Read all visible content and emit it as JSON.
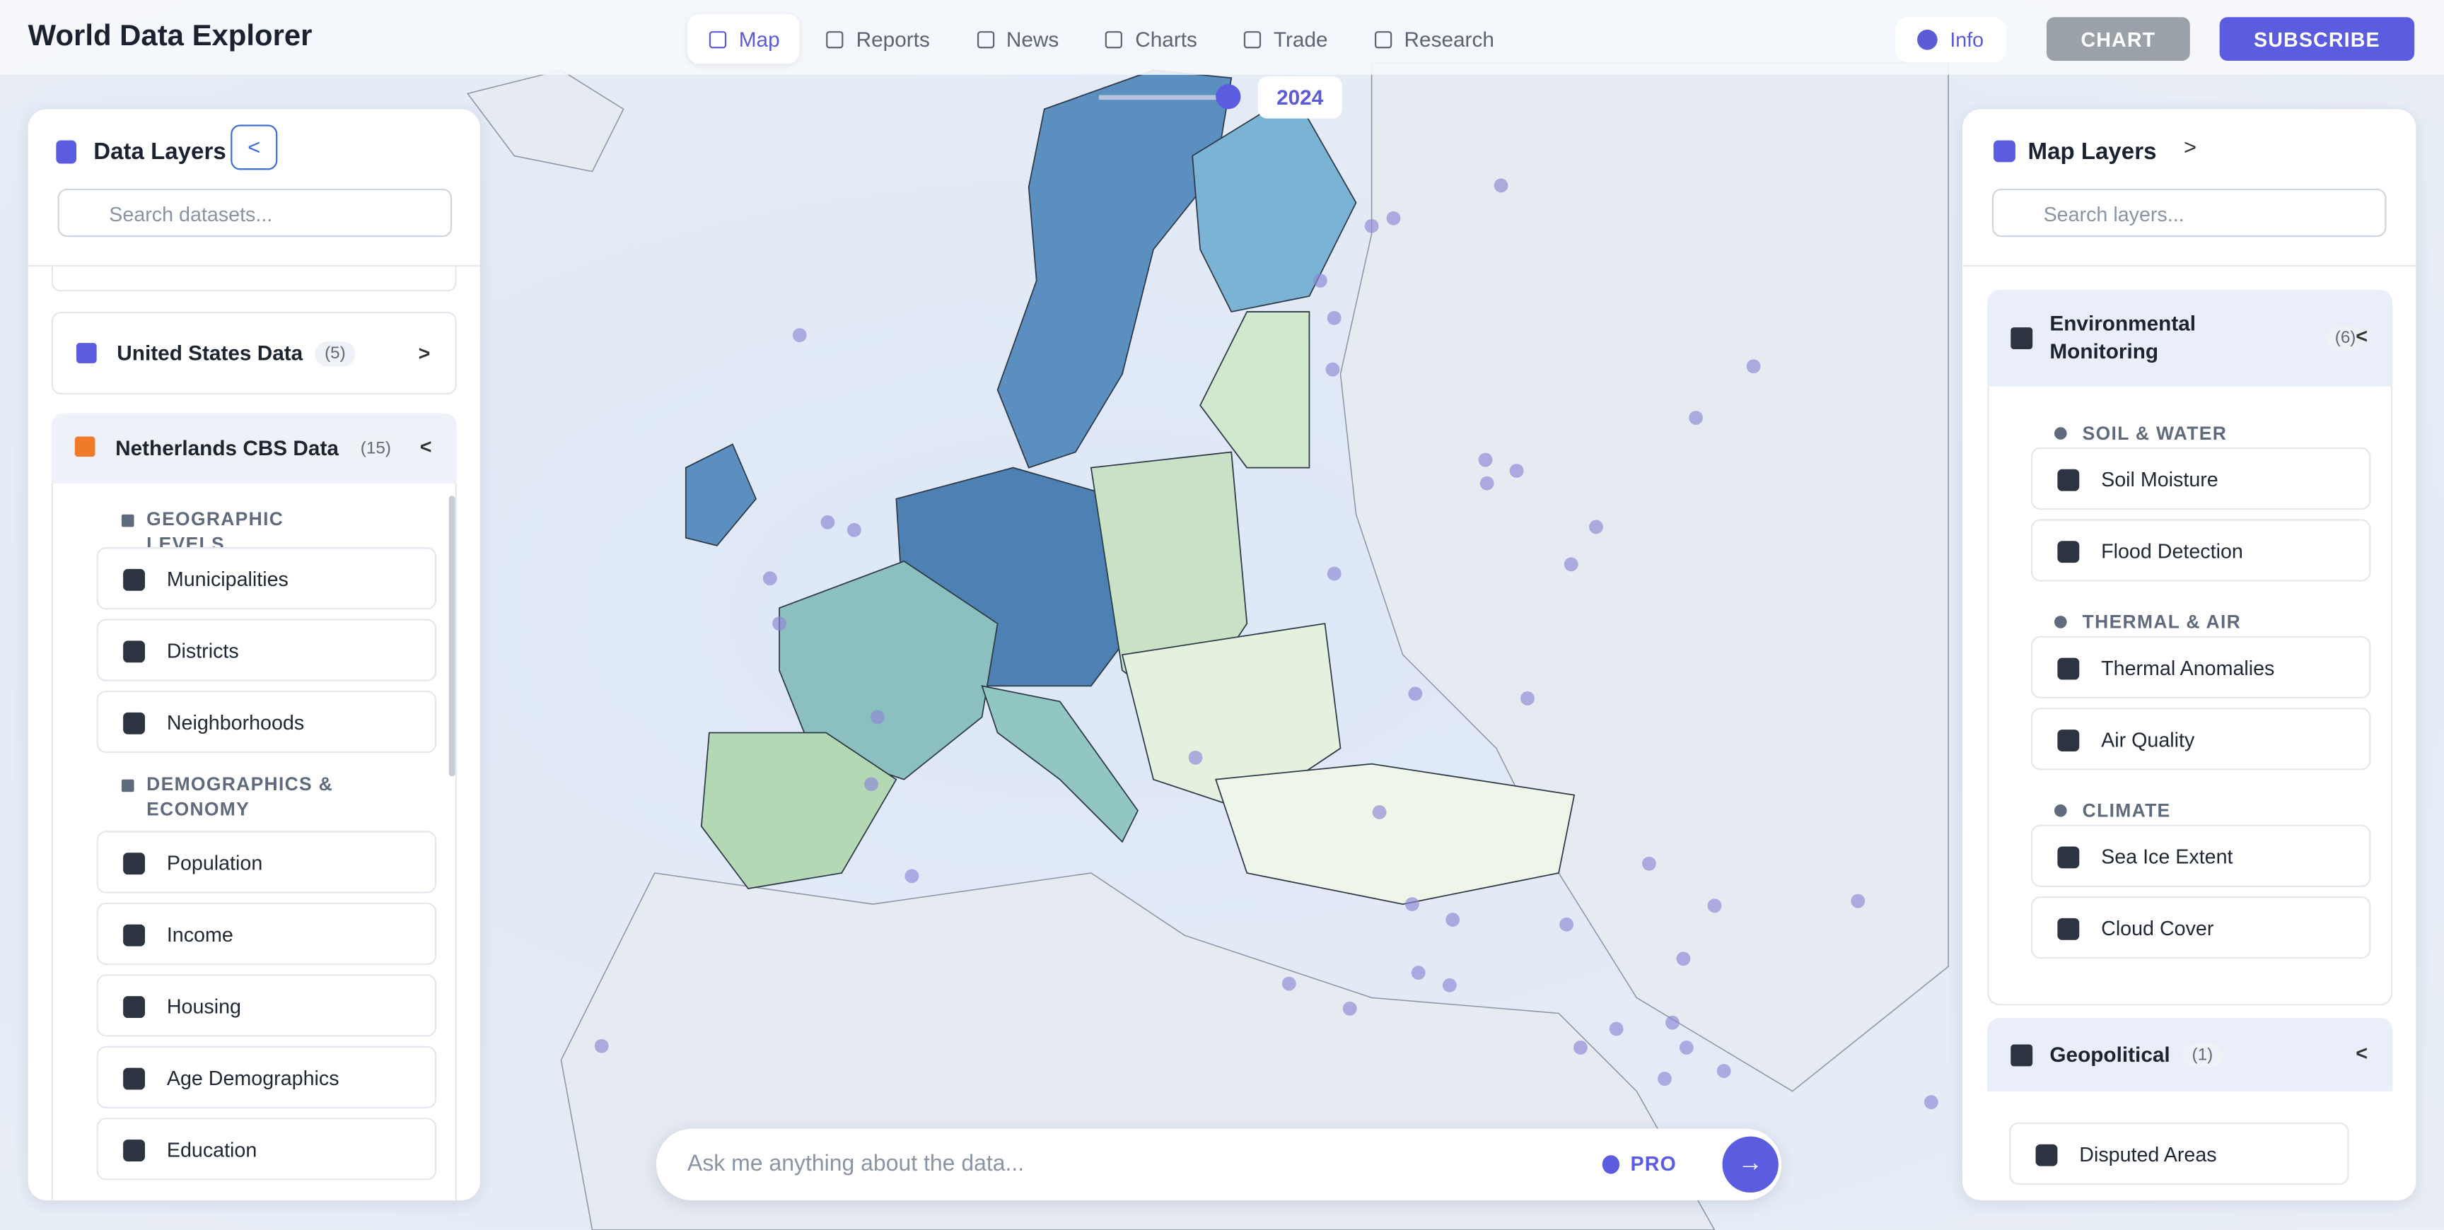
{
  "header": {
    "title": "World Data Explorer",
    "nav": [
      "Map",
      "Reports",
      "News",
      "Charts",
      "Trade",
      "Research"
    ],
    "info": "Info",
    "chart_button": "CHART",
    "subscribe": "SUBSCRIBE"
  },
  "year": "2024",
  "left_panel": {
    "title": "Data Layers",
    "search_placeholder": "Search datasets...",
    "groups": [
      {
        "name": "United States Data",
        "count": "(5)"
      },
      {
        "name": "Netherlands CBS Data",
        "count": "(15)",
        "sections": [
          {
            "title": "GEOGRAPHIC LEVELS",
            "items": [
              "Municipalities",
              "Districts",
              "Neighborhoods"
            ]
          },
          {
            "title": "DEMOGRAPHICS & ECONOMY",
            "items": [
              "Population",
              "Income",
              "Housing",
              "Age Demographics",
              "Education"
            ]
          }
        ]
      }
    ]
  },
  "right_panel": {
    "title": "Map Layers",
    "search_placeholder": "Search layers...",
    "groups": [
      {
        "name": "Environmental Monitoring",
        "count": "(6)",
        "sections": [
          {
            "title": "SOIL & WATER",
            "items": [
              "Soil Moisture",
              "Flood Detection"
            ]
          },
          {
            "title": "THERMAL & AIR",
            "items": [
              "Thermal Anomalies",
              "Air Quality"
            ]
          },
          {
            "title": "CLIMATE",
            "items": [
              "Sea Ice Extent",
              "Cloud Cover"
            ]
          }
        ]
      },
      {
        "name": "Geopolitical",
        "count": "(1)",
        "items": [
          "Disputed Areas"
        ]
      }
    ]
  },
  "query": {
    "placeholder": "Ask me anything about the data...",
    "pro": "PRO"
  }
}
